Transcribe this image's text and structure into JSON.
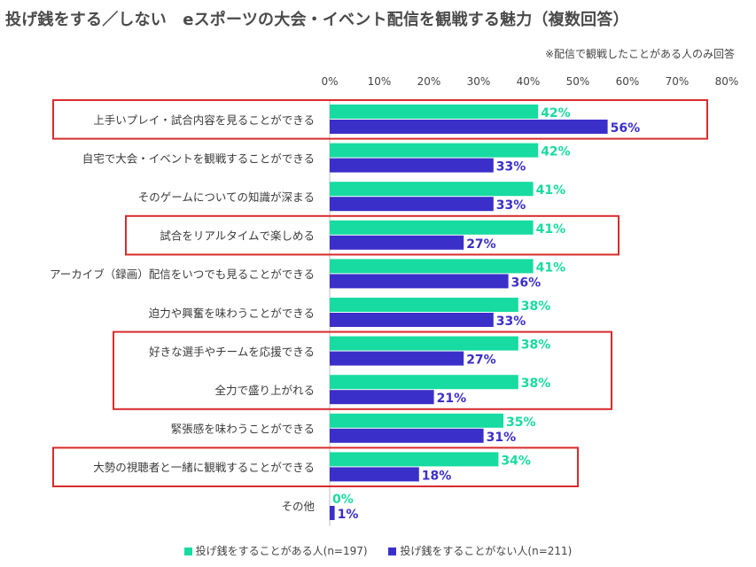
{
  "title": "投げ銭をする／しない　eスポーツの大会・イベント配信を観戦する魅力（複数回答）",
  "note": "※配信で観戦したことがある人のみ回答",
  "colors": {
    "series1": "#17dba0",
    "series2": "#3b2fc9",
    "highlight_box": "#d92b2b",
    "axis": "#bfbfbf"
  },
  "chart_data": {
    "type": "bar",
    "orientation": "horizontal",
    "xlim": [
      0,
      80
    ],
    "x_ticks": [
      "0%",
      "10%",
      "20%",
      "30%",
      "40%",
      "50%",
      "60%",
      "70%",
      "80%"
    ],
    "categories": [
      "上手いプレイ・試合内容を見ることができる",
      "自宅で大会・イベントを観戦することができる",
      "そのゲームについての知識が深まる",
      "試合をリアルタイムで楽しめる",
      "アーカイブ（録画）配信をいつでも見ることができる",
      "迫力や興奮を味わうことができる",
      "好きな選手やチームを応援できる",
      "全力で盛り上がれる",
      "緊張感を味わうことができる",
      "大勢の視聴者と一緒に観戦することができる",
      "その他"
    ],
    "series": [
      {
        "name": "投げ銭をすることがある人(n=197)",
        "values": [
          42,
          42,
          41,
          41,
          41,
          38,
          38,
          38,
          35,
          34,
          0
        ],
        "labels": [
          "42%",
          "42%",
          "41%",
          "41%",
          "41%",
          "38%",
          "38%",
          "38%",
          "35%",
          "34%",
          "0%"
        ]
      },
      {
        "name": "投げ銭をすることがない人(n=211)",
        "values": [
          56,
          33,
          33,
          27,
          36,
          33,
          27,
          21,
          31,
          18,
          1
        ],
        "labels": [
          "56%",
          "33%",
          "33%",
          "27%",
          "36%",
          "33%",
          "27%",
          "21%",
          "31%",
          "18%",
          "1%"
        ]
      }
    ],
    "highlighted_groups": [
      [
        0
      ],
      [
        3
      ],
      [
        6,
        7
      ],
      [
        9
      ]
    ],
    "grid": false,
    "legend_position": "bottom"
  }
}
